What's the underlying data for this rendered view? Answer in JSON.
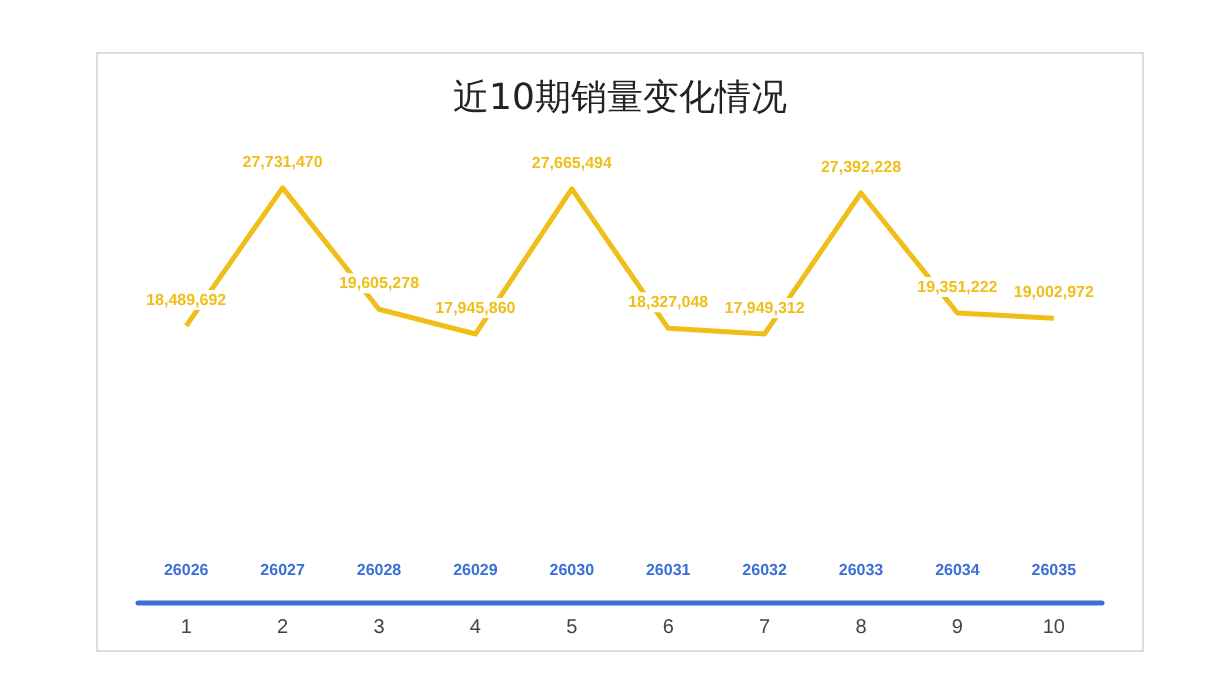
{
  "chart_data": {
    "type": "line",
    "title": "近10期销量变化情况",
    "categories": [
      "1",
      "2",
      "3",
      "4",
      "5",
      "6",
      "7",
      "8",
      "9",
      "10"
    ],
    "series": [
      {
        "color": "#f0be19",
        "values": [
          18489692,
          27731470,
          19605278,
          17945860,
          27665494,
          18327048,
          17949312,
          27392228,
          19351222,
          19002972
        ],
        "value_labels": [
          "18,489,692",
          "27,731,470",
          "19,605,278",
          "17,945,860",
          "27,665,494",
          "18,327,048",
          "17,949,312",
          "27,392,228",
          "19,351,222",
          "19,002,972"
        ]
      }
    ],
    "marker": "none",
    "grid": false,
    "annotations": [
      "26026",
      "26027",
      "26028",
      "26029",
      "26030",
      "26031",
      "26032",
      "26033",
      "26034",
      "26035"
    ]
  }
}
